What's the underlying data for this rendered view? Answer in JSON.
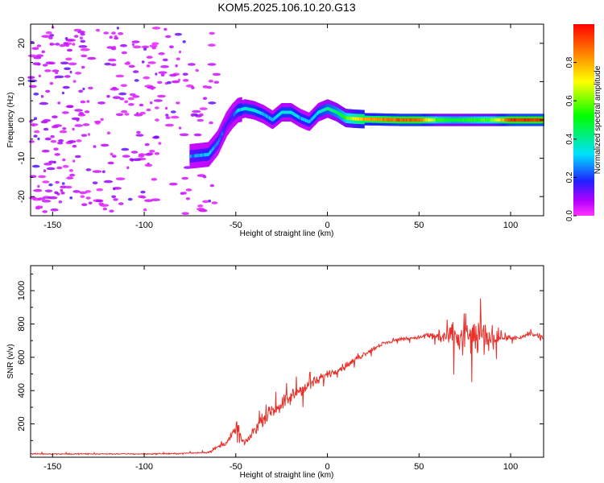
{
  "title": "KOM5.2025.106.10.20.G13",
  "colors": {
    "snr_line": "#e8302a",
    "frame": "#000000",
    "background": "#ffffff"
  },
  "chart_data": [
    {
      "type": "heatmap",
      "xlabel": "Height of straight line (km)",
      "ylabel": "Frequency (Hz)",
      "xlim": [
        -162,
        118
      ],
      "ylim": [
        -25,
        25
      ],
      "xticks": [
        -150,
        -100,
        -50,
        0,
        50,
        100
      ],
      "yticks": [
        -20,
        -10,
        0,
        10,
        20
      ],
      "colorbar": {
        "label": "Normalized spectral amplitude",
        "range": [
          0,
          1
        ],
        "ticks": [
          0.0,
          0.2,
          0.4,
          0.6,
          0.8
        ],
        "colormap": "rainbow (magenta-blue-cyan-green-yellow-red)"
      },
      "ridge": {
        "x": [
          -75,
          -65,
          -60,
          -57,
          -55,
          -52,
          -49,
          -45,
          -40,
          -35,
          -30,
          -25,
          -20,
          -15,
          -10,
          -5,
          0,
          5,
          10,
          15,
          20,
          30,
          40,
          50,
          60,
          70,
          80,
          90,
          100,
          118
        ],
        "y": [
          -9.5,
          -9,
          -6,
          -3,
          -1,
          1,
          2.5,
          3,
          2.5,
          1.5,
          0,
          2,
          2,
          0.5,
          -0.5,
          2,
          3,
          2,
          0.5,
          0.3,
          0.2,
          0.1,
          0,
          0,
          0,
          0,
          0,
          0,
          0,
          0
        ],
        "amplitude": [
          0.25,
          0.3,
          0.25,
          0.2,
          0.15,
          0.2,
          0.3,
          0.35,
          0.35,
          0.3,
          0.3,
          0.35,
          0.35,
          0.3,
          0.3,
          0.35,
          0.4,
          0.45,
          0.55,
          0.7,
          0.8,
          0.85,
          0.9,
          0.9,
          0.55,
          0.5,
          0.55,
          0.6,
          0.95,
          0.95
        ]
      },
      "noise_region_x": [
        -162,
        -60
      ]
    },
    {
      "type": "line",
      "xlabel": "Height of straight line (km)",
      "ylabel": "SNR (v/v)",
      "xlim": [
        -162,
        118
      ],
      "ylim": [
        0,
        1150
      ],
      "xticks": [
        -150,
        -100,
        -50,
        0,
        50,
        100
      ],
      "yticks": [
        200,
        400,
        600,
        800,
        1000
      ],
      "series": [
        {
          "x": [
            -162,
            -140,
            -120,
            -100,
            -80,
            -65,
            -60,
            -55,
            -52,
            -50,
            -48,
            -47,
            -45,
            -40,
            -35,
            -30,
            -25,
            -20,
            -15,
            -10,
            -5,
            0,
            5,
            10,
            15,
            20,
            25,
            30,
            40,
            50,
            55,
            60,
            65,
            70,
            75,
            80,
            85,
            90,
            95,
            100,
            105,
            110,
            118
          ],
          "y": [
            20,
            20,
            20,
            20,
            22,
            30,
            60,
            90,
            130,
            180,
            150,
            110,
            80,
            160,
            230,
            280,
            320,
            360,
            400,
            430,
            460,
            500,
            520,
            550,
            580,
            620,
            650,
            680,
            710,
            720,
            730,
            730,
            720,
            720,
            720,
            720,
            720,
            720,
            720,
            720,
            710,
            740,
            720
          ],
          "spread": [
            10,
            10,
            10,
            10,
            10,
            15,
            25,
            40,
            70,
            160,
            180,
            40,
            40,
            80,
            100,
            110,
            120,
            130,
            120,
            100,
            80,
            70,
            60,
            60,
            50,
            40,
            40,
            40,
            30,
            30,
            60,
            120,
            200,
            260,
            300,
            320,
            320,
            180,
            80,
            40,
            40,
            40,
            40
          ]
        }
      ]
    }
  ]
}
